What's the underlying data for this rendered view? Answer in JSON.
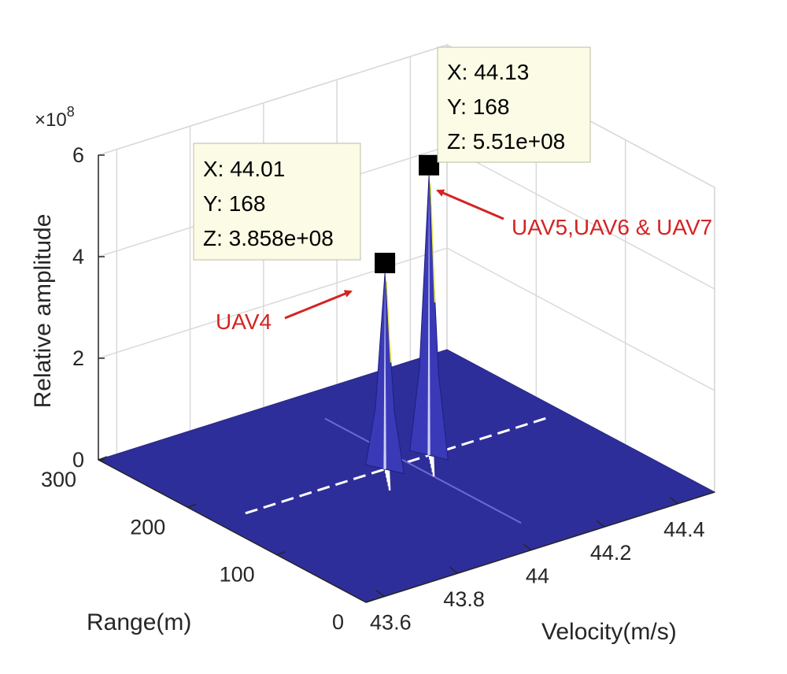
{
  "chart_data": {
    "type": "surface",
    "title": "",
    "xlabel": "Velocity(m/s)",
    "ylabel": "Range(m)",
    "zlabel": "Relative amplitude",
    "z_exponent_label": "×10",
    "z_exponent_power": "8",
    "xlim": [
      43.55,
      44.5
    ],
    "ylim": [
      0,
      300
    ],
    "zlim": [
      0,
      6
    ],
    "x_ticks": [
      43.6,
      43.8,
      44,
      44.2,
      44.4
    ],
    "x_tick_labels": [
      "43.6",
      "43.8",
      "44",
      "44.2",
      "44.4"
    ],
    "y_ticks": [
      0,
      100,
      200,
      300
    ],
    "y_tick_labels": [
      "0",
      "100",
      "200",
      "300"
    ],
    "z_ticks": [
      0,
      2,
      4,
      6
    ],
    "z_tick_labels": [
      "0",
      "2",
      "4",
      "6"
    ],
    "grid": true,
    "colors": {
      "surface": "#2e2e9a",
      "peak": "#3a3ab8",
      "annotation": "#d42323",
      "datatip_bg": "#fbfbe6",
      "grid": "#d9d9d9"
    },
    "peaks": [
      {
        "name": "UAV4",
        "x": 44.01,
        "y": 168,
        "z": 385800000,
        "datatip": [
          "X: 44.01",
          "Y: 168",
          "Z: 3.858e+08"
        ],
        "annotation": "UAV4"
      },
      {
        "name": "UAV5,UAV6 & UAV7",
        "x": 44.13,
        "y": 168,
        "z": 551000000,
        "datatip": [
          "X: 44.13",
          "Y: 168",
          "Z: 5.51e+08"
        ],
        "annotation": "UAV5,UAV6 & UAV7"
      }
    ]
  }
}
